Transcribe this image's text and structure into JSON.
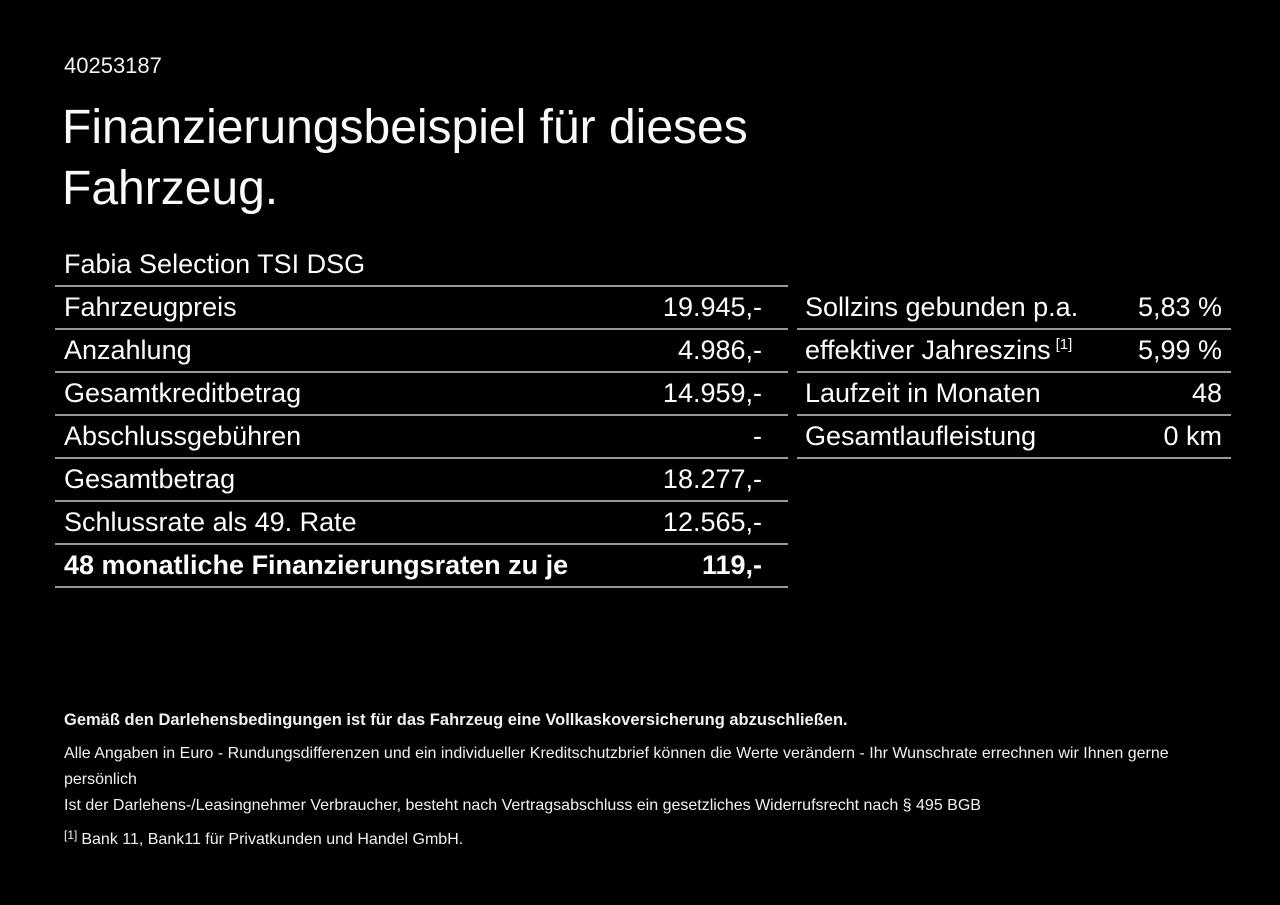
{
  "theme": {
    "background": "#000000",
    "text_color": "#ffffff",
    "divider_color": "#999999"
  },
  "header": {
    "document_id": "40253187",
    "title_line1": "Finanzierungsbeispiel für dieses",
    "title_line2": "Fahrzeug."
  },
  "vehicle": {
    "model": "Fabia Selection TSI DSG"
  },
  "finance_table": {
    "rows": [
      {
        "label": "Fahrzeugpreis",
        "value": "19.945,-"
      },
      {
        "label": "Anzahlung",
        "value": "4.986,-"
      },
      {
        "label": "Gesamtkreditbetrag",
        "value": "14.959,-"
      },
      {
        "label": "Abschlussgebühren",
        "value": "-"
      },
      {
        "label": "Gesamtbetrag",
        "value": "18.277,-"
      },
      {
        "label": "Schlussrate als 49. Rate",
        "value": "12.565,-"
      },
      {
        "label": "48 monatliche Finanzierungsraten zu je",
        "value": "119,-"
      }
    ]
  },
  "conditions_table": {
    "rows": [
      {
        "label": "Sollzins gebunden p.a.",
        "sup": "",
        "value": "5,83 %"
      },
      {
        "label": "effektiver Jahreszins",
        "sup": "[1]",
        "value": "5,99 %"
      },
      {
        "label": "Laufzeit in Monaten",
        "sup": "",
        "value": "48"
      },
      {
        "label": "Gesamtlaufleistung",
        "sup": "",
        "value": "0 km"
      }
    ]
  },
  "footer": {
    "bold_note": "Gemäß den Darlehensbedingungen ist für das Fahrzeug eine Vollkaskoversicherung abzuschließen.",
    "note1": "Alle Angaben in Euro - Rundungsdifferenzen und ein individueller Kreditschutzbrief können die Werte verändern - Ihr Wunschrate errechnen wir Ihnen gerne persönlich",
    "note2": "Ist der Darlehens-/Leasingnehmer Verbraucher, besteht nach Vertragsabschluss ein gesetzliches Widerrufsrecht nach § 495 BGB",
    "footnote_marker": "[1]",
    "footnote_text": "Bank 11, Bank11 für Privatkunden und Handel GmbH."
  }
}
